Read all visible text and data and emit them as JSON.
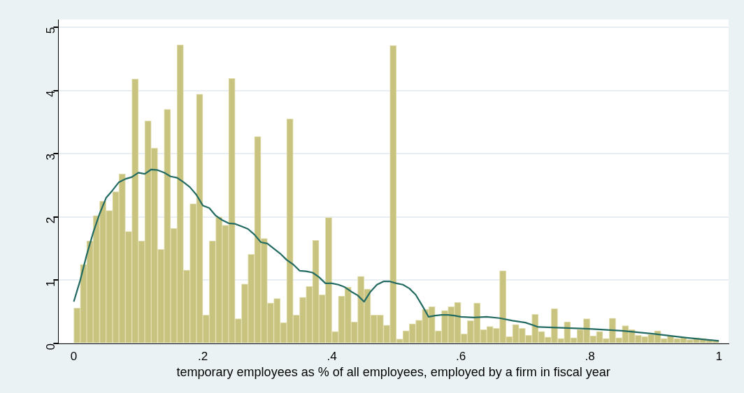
{
  "chart_data": {
    "type": "histogram",
    "xlabel": "temporary employees as % of all employees, employed by a firm in fiscal year",
    "bins": [
      0,
      0.01,
      0.02,
      0.03,
      0.04,
      0.05,
      0.06,
      0.07,
      0.08,
      0.09,
      0.1,
      0.11,
      0.12,
      0.13,
      0.14,
      0.15,
      0.16,
      0.17,
      0.18,
      0.19,
      0.2,
      0.21,
      0.22,
      0.23,
      0.24,
      0.25,
      0.26,
      0.27,
      0.28,
      0.29,
      0.3,
      0.31,
      0.32,
      0.33,
      0.34,
      0.35,
      0.36,
      0.37,
      0.38,
      0.39,
      0.4,
      0.41,
      0.42,
      0.43,
      0.44,
      0.45,
      0.46,
      0.47,
      0.48,
      0.49,
      0.5,
      0.51,
      0.52,
      0.53,
      0.54,
      0.55,
      0.56,
      0.57,
      0.58,
      0.59,
      0.6,
      0.61,
      0.62,
      0.63,
      0.64,
      0.65,
      0.66,
      0.67,
      0.68,
      0.69,
      0.7,
      0.71,
      0.72,
      0.73,
      0.74,
      0.75,
      0.76,
      0.77,
      0.78,
      0.79,
      0.8,
      0.81,
      0.82,
      0.83,
      0.84,
      0.85,
      0.86,
      0.87,
      0.88,
      0.89,
      0.9,
      0.91,
      0.92,
      0.93,
      0.94,
      0.95,
      0.96,
      0.97,
      0.98,
      0.99,
      1
    ],
    "values": [
      0.56,
      1.25,
      1.62,
      2.02,
      2.25,
      2.1,
      2.4,
      2.68,
      1.77,
      4.18,
      1.62,
      3.52,
      3.09,
      1.49,
      3.7,
      1.82,
      4.72,
      1.16,
      2.21,
      3.94,
      0.45,
      1.62,
      2.0,
      1.87,
      4.19,
      0.39,
      0.94,
      1.41,
      3.27,
      1.66,
      0.64,
      0.71,
      0.33,
      3.55,
      0.45,
      0.73,
      0.9,
      1.63,
      0.77,
      1.99,
      0.19,
      0.75,
      0.89,
      0.34,
      1.06,
      0.86,
      0.45,
      0.45,
      0.29,
      4.71,
      0.07,
      0.2,
      0.31,
      0.37,
      0.54,
      0.58,
      0.2,
      0.52,
      0.58,
      0.65,
      0.15,
      0.36,
      0.64,
      0.22,
      0.27,
      0.24,
      1.15,
      0.11,
      0.3,
      0.24,
      0.13,
      0.46,
      0.19,
      0.1,
      0.55,
      0.08,
      0.34,
      0.09,
      0.22,
      0.39,
      0.12,
      0.19,
      0.08,
      0.4,
      0.09,
      0.28,
      0.22,
      0.13,
      0.11,
      0.14,
      0.2,
      0.08,
      0.12,
      0.08,
      0.09,
      0.06,
      0.09,
      0.08,
      0.06,
      0.04
    ],
    "color": "#c9c380",
    "series": [
      {
        "type": "line",
        "color": "#236b62",
        "x": [
          0,
          0.01,
          0.02,
          0.03,
          0.04,
          0.05,
          0.06,
          0.07,
          0.08,
          0.09,
          0.1,
          0.11,
          0.12,
          0.13,
          0.14,
          0.15,
          0.16,
          0.17,
          0.18,
          0.19,
          0.2,
          0.21,
          0.22,
          0.23,
          0.24,
          0.25,
          0.26,
          0.27,
          0.28,
          0.29,
          0.3,
          0.31,
          0.32,
          0.33,
          0.34,
          0.35,
          0.36,
          0.37,
          0.38,
          0.39,
          0.4,
          0.41,
          0.42,
          0.43,
          0.44,
          0.45,
          0.46,
          0.47,
          0.48,
          0.49,
          0.5,
          0.51,
          0.52,
          0.53,
          0.54,
          0.55,
          0.56,
          0.57,
          0.58,
          0.59,
          0.6,
          0.62,
          0.64,
          0.66,
          0.68,
          0.7,
          0.72,
          0.75,
          0.8,
          0.85,
          0.9,
          0.95,
          1
        ],
        "values": [
          0.66,
          1.0,
          1.4,
          1.75,
          2.05,
          2.3,
          2.42,
          2.55,
          2.6,
          2.63,
          2.7,
          2.68,
          2.75,
          2.74,
          2.7,
          2.64,
          2.62,
          2.55,
          2.47,
          2.35,
          2.18,
          2.14,
          2.02,
          1.95,
          1.9,
          1.89,
          1.85,
          1.81,
          1.72,
          1.6,
          1.58,
          1.5,
          1.42,
          1.32,
          1.25,
          1.15,
          1.14,
          1.12,
          1.05,
          0.95,
          0.95,
          0.93,
          0.89,
          0.82,
          0.76,
          0.66,
          0.82,
          0.93,
          0.98,
          0.98,
          0.95,
          0.93,
          0.87,
          0.77,
          0.6,
          0.42,
          0.44,
          0.45,
          0.45,
          0.44,
          0.42,
          0.41,
          0.42,
          0.4,
          0.36,
          0.33,
          0.26,
          0.25,
          0.23,
          0.2,
          0.15,
          0.09,
          0.04
        ]
      }
    ],
    "xlim": [
      -0.024,
      1.015
    ],
    "xticks": [
      0,
      {
        "value": 0.2,
        "label": ".2"
      },
      {
        "value": 0.4,
        "label": ".4"
      },
      {
        "value": 0.6,
        "label": ".6"
      },
      {
        "value": 0.8,
        "label": ".8"
      },
      1
    ],
    "ylim": [
      0,
      5.12
    ],
    "yticks": [
      0,
      1,
      2,
      3,
      4,
      5
    ],
    "grid": "y",
    "legend": false
  }
}
